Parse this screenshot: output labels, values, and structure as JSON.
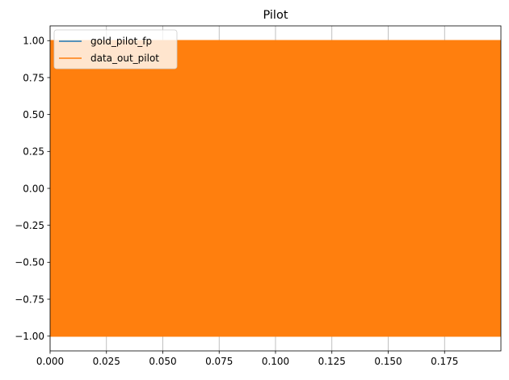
{
  "chart_data": {
    "type": "line",
    "title": "Pilot",
    "xlabel": "",
    "ylabel": "",
    "xlim": [
      0.0,
      0.2
    ],
    "ylim": [
      -1.1,
      1.1
    ],
    "x_ticks": [
      0.0,
      0.025,
      0.05,
      0.075,
      0.1,
      0.125,
      0.15,
      0.175
    ],
    "x_tick_labels": [
      "0.000",
      "0.025",
      "0.050",
      "0.075",
      "0.100",
      "0.125",
      "0.150",
      "0.175"
    ],
    "y_ticks": [
      -1.0,
      -0.75,
      -0.5,
      -0.25,
      0.0,
      0.25,
      0.5,
      0.75,
      1.0
    ],
    "y_tick_labels": [
      "−1.00",
      "−0.75",
      "−0.50",
      "−0.25",
      "0.00",
      "0.25",
      "0.50",
      "0.75",
      "1.00"
    ],
    "grid": true,
    "legend_position": "upper-left",
    "series": [
      {
        "name": "gold_pilot_fp",
        "color": "#1f77b4",
        "x": [
          0.0,
          0.2
        ],
        "y_min": [
          -1.0,
          -1.0
        ],
        "y_max": [
          1.0,
          1.0
        ]
      },
      {
        "name": "data_out_pilot",
        "color": "#ff7f0e",
        "x": [
          0.0,
          0.2
        ],
        "y_min": [
          -1.0,
          -1.0
        ],
        "y_max": [
          1.0,
          1.0
        ]
      }
    ]
  }
}
